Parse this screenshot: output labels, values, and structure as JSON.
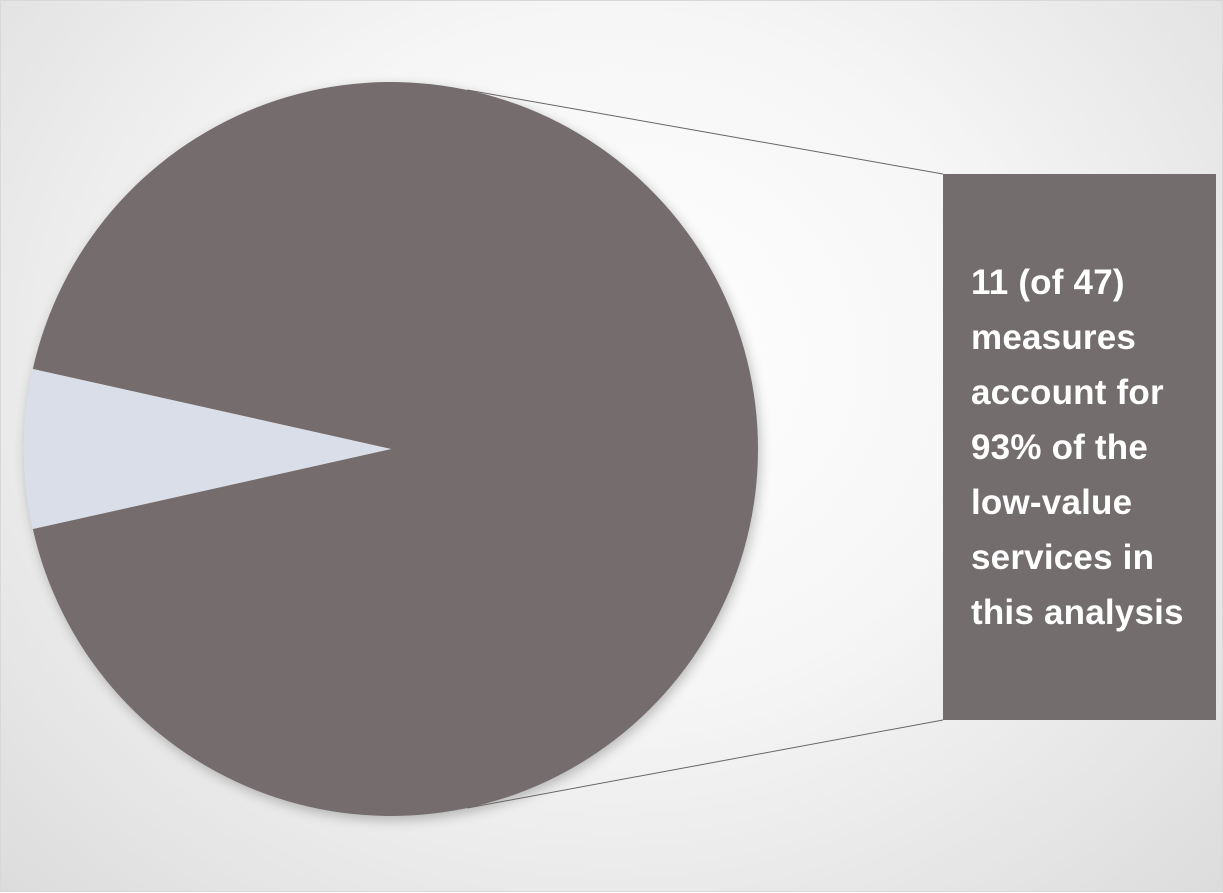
{
  "chart_data": {
    "type": "pie",
    "title": "",
    "slices": [
      {
        "value": 93,
        "color": "#746d6d"
      },
      {
        "value": 7,
        "color": "#d9dee8"
      }
    ],
    "callout": {
      "text": "11 (of 47) measures account for 93% of the low-value services in this analysis",
      "lines": [
        "11 (of 47)",
        "measures",
        "account for",
        "93% of the",
        "low-value",
        "services in",
        "this analysis"
      ],
      "color": "#746d6d"
    }
  }
}
